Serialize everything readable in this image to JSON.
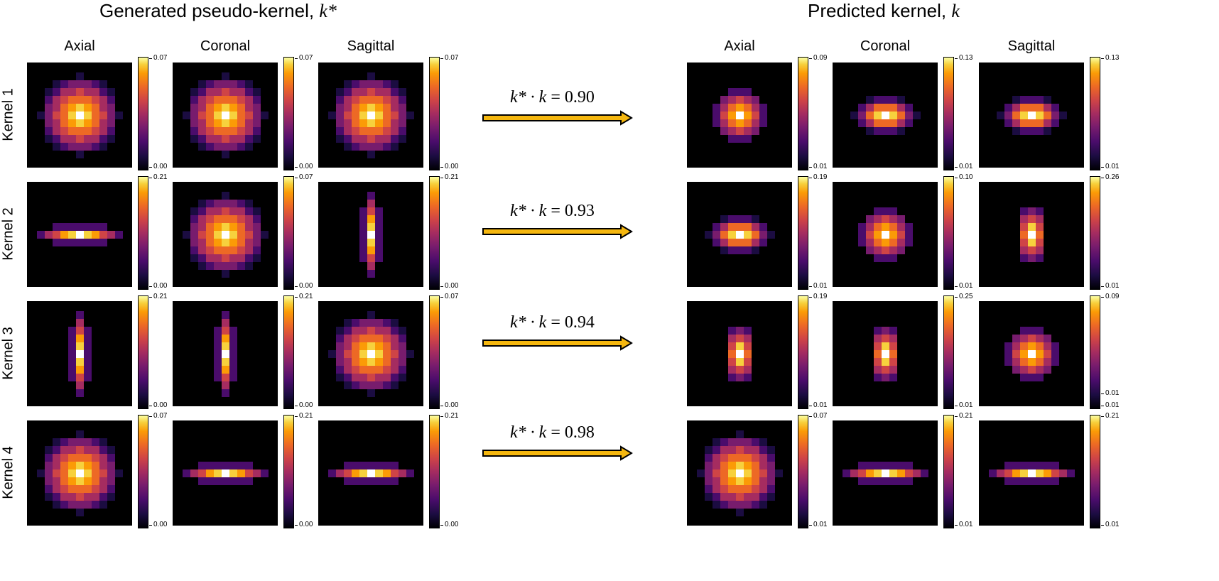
{
  "titles": {
    "left": {
      "text": "Generated pseudo-kernel, ",
      "math": "k*"
    },
    "right": {
      "text": "Predicted kernel, ",
      "math": "k"
    }
  },
  "column_headers": [
    "Axial",
    "Coronal",
    "Sagittal"
  ],
  "row_labels": [
    "Kernel 1",
    "Kernel 2",
    "Kernel 3",
    "Kernel 4"
  ],
  "arrows": [
    {
      "lhs": "k* · k",
      "value": "= 0.90"
    },
    {
      "lhs": "k* · k",
      "value": "= 0.93"
    },
    {
      "lhs": "k* · k",
      "value": "= 0.94"
    },
    {
      "lhs": "k* · k",
      "value": "= 0.98"
    }
  ],
  "colors": {
    "arrow_fill": "#f5b70f",
    "arrow_stroke": "#000000",
    "panel_bg": "#000000"
  },
  "colormap": "inferno",
  "generated": [
    [
      {
        "shape": "round",
        "max": "0.07",
        "min": "0.00"
      },
      {
        "shape": "round",
        "max": "0.07",
        "min": "0.00"
      },
      {
        "shape": "round",
        "max": "0.07",
        "min": "0.00"
      }
    ],
    [
      {
        "shape": "horizontal",
        "max": "0.21",
        "min": "0.00"
      },
      {
        "shape": "round",
        "max": "0.07",
        "min": "0.00"
      },
      {
        "shape": "vertical",
        "max": "0.21",
        "min": "0.00"
      }
    ],
    [
      {
        "shape": "vertical",
        "max": "0.21",
        "min": "0.00"
      },
      {
        "shape": "vertical",
        "max": "0.21",
        "min": "0.00"
      },
      {
        "shape": "round",
        "max": "0.07",
        "min": "0.00"
      }
    ],
    [
      {
        "shape": "round",
        "max": "0.07",
        "min": "0.00"
      },
      {
        "shape": "horizontal",
        "max": "0.21",
        "min": "0.00"
      },
      {
        "shape": "horizontal",
        "max": "0.21",
        "min": "0.00"
      }
    ]
  ],
  "predicted": [
    [
      {
        "shape": "round-small",
        "max": "0.09",
        "min": "0.01"
      },
      {
        "shape": "horizontal-wide",
        "max": "0.13",
        "min": "0.01"
      },
      {
        "shape": "horizontal-wide",
        "max": "0.13",
        "min": "0.01"
      }
    ],
    [
      {
        "shape": "horizontal-wide",
        "max": "0.19",
        "min": "0.01"
      },
      {
        "shape": "round-small",
        "max": "0.10",
        "min": "0.01"
      },
      {
        "shape": "vertical-short",
        "max": "0.26",
        "min": "0.01"
      }
    ],
    [
      {
        "shape": "vertical-short",
        "max": "0.19",
        "min": "0.01"
      },
      {
        "shape": "vertical-short",
        "max": "0.25",
        "min": "0.01"
      },
      {
        "shape": "round-small",
        "max": "0.09",
        "min": "0.01",
        "mid": "0.01"
      }
    ],
    [
      {
        "shape": "round",
        "max": "0.07",
        "min": "0.01"
      },
      {
        "shape": "horizontal",
        "max": "0.21",
        "min": "0.01"
      },
      {
        "shape": "horizontal",
        "max": "0.21",
        "min": "0.01"
      }
    ]
  ]
}
